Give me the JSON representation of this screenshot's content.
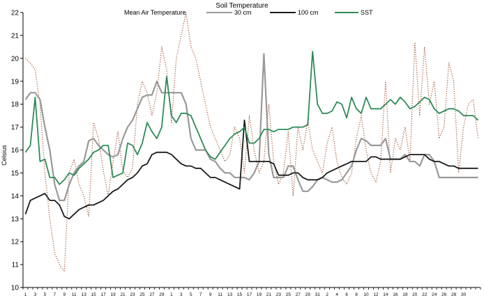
{
  "chart_data": {
    "type": "line",
    "title": "Soil Temperature",
    "ylabel": "Celsius",
    "xlabel": "",
    "ylim": [
      10,
      22
    ],
    "y_ticks": [
      10,
      11,
      12,
      13,
      14,
      15,
      16,
      17,
      18,
      19,
      20,
      21,
      22
    ],
    "grid": false,
    "legend": "top",
    "x_count": 94,
    "x_tick_labels": [
      "1",
      "3",
      "5",
      "7",
      "9",
      "11",
      "13",
      "15",
      "17",
      "19",
      "21",
      "23",
      "25",
      "27",
      "29",
      "1",
      "3",
      "5",
      "7",
      "9",
      "11",
      "13",
      "15",
      "17",
      "19",
      "21",
      "23",
      "25",
      "27",
      "29",
      "31",
      "2",
      "4",
      "6",
      "8",
      "10",
      "12",
      "14",
      "16",
      "18",
      "20",
      "22",
      "24",
      "26",
      "28",
      "30"
    ],
    "series": [
      {
        "name": "Mean Air Temperature",
        "color": "#a0522d",
        "style": "dotted",
        "values": [
          20.0,
          19.8,
          19.5,
          18.0,
          15.0,
          13.0,
          11.5,
          11.0,
          10.7,
          15.0,
          15.6,
          14.5,
          14.0,
          13.1,
          17.2,
          16.5,
          15.1,
          14.0,
          15.5,
          16.8,
          15.1,
          14.8,
          15.2,
          18.0,
          19.0,
          18.5,
          17.5,
          18.5,
          20.5,
          19.5,
          17.2,
          20.0,
          21.0,
          22.0,
          20.5,
          20.0,
          19.0,
          18.0,
          17.0,
          16.5,
          16.0,
          15.5,
          15.8,
          17.0,
          16.5,
          15.0,
          17.5,
          16.0,
          15.0,
          15.5,
          18.0,
          15.5,
          14.5,
          15.0,
          16.8,
          14.0,
          17.0,
          16.0,
          17.3,
          16.0,
          15.5,
          15.0,
          16.3,
          17.0,
          15.5,
          14.8,
          14.5,
          15.0,
          16.5,
          17.5,
          16.0,
          15.0,
          14.6,
          15.5,
          19.0,
          15.0,
          16.5,
          16.0,
          17.0,
          15.5,
          20.7,
          17.5,
          20.5,
          18.0,
          19.0,
          16.5,
          17.0,
          19.8,
          19.0,
          15.0,
          17.0,
          18.0,
          18.2,
          16.5
        ]
      },
      {
        "name": "30 cm",
        "color": "#999999",
        "style": "solid",
        "values": [
          18.2,
          18.5,
          18.5,
          18.2,
          17.0,
          16.0,
          14.5,
          13.8,
          13.8,
          14.5,
          15.0,
          15.3,
          15.5,
          16.4,
          16.5,
          16.2,
          16.0,
          15.8,
          15.7,
          15.8,
          16.5,
          17.0,
          17.3,
          17.8,
          18.3,
          18.4,
          18.4,
          19.0,
          18.5,
          18.5,
          18.5,
          18.5,
          18.5,
          18.0,
          16.5,
          16.0,
          16.0,
          16.0,
          15.6,
          15.5,
          15.2,
          15.0,
          15.0,
          14.8,
          14.8,
          14.8,
          14.7,
          15.0,
          15.5,
          20.2,
          15.8,
          14.8,
          14.8,
          14.8,
          15.3,
          15.3,
          14.7,
          14.2,
          14.2,
          14.4,
          14.7,
          14.8,
          14.7,
          14.6,
          14.6,
          14.7,
          15.0,
          15.3,
          16.0,
          16.5,
          16.4,
          16.2,
          16.2,
          16.2,
          16.5,
          15.6,
          15.6,
          15.6,
          15.8,
          15.5,
          15.5,
          15.3,
          15.8,
          15.8,
          15.5,
          14.8,
          14.8,
          14.8,
          14.8,
          14.8,
          14.8,
          14.8,
          14.8,
          14.8
        ]
      },
      {
        "name": "100 cm",
        "color": "#1a1a1a",
        "style": "solid",
        "values": [
          13.2,
          13.8,
          13.9,
          14.0,
          14.1,
          13.8,
          13.8,
          13.6,
          13.1,
          13.0,
          13.2,
          13.4,
          13.5,
          13.6,
          13.6,
          13.7,
          13.8,
          14.0,
          14.2,
          14.3,
          14.5,
          14.7,
          14.8,
          15.0,
          15.3,
          15.4,
          15.8,
          15.9,
          15.9,
          15.9,
          15.8,
          15.6,
          15.4,
          15.3,
          15.3,
          15.2,
          15.2,
          15.0,
          14.8,
          14.8,
          14.7,
          14.6,
          14.5,
          14.4,
          14.3,
          17.3,
          15.5,
          15.5,
          15.5,
          15.5,
          15.5,
          15.4,
          14.9,
          14.9,
          14.9,
          15.0,
          15.0,
          14.8,
          14.7,
          14.7,
          14.7,
          14.8,
          15.0,
          15.1,
          15.2,
          15.3,
          15.4,
          15.5,
          15.5,
          15.5,
          15.5,
          15.7,
          15.7,
          15.6,
          15.6,
          15.6,
          15.6,
          15.6,
          15.7,
          15.8,
          15.8,
          15.8,
          15.8,
          15.6,
          15.5,
          15.5,
          15.4,
          15.3,
          15.3,
          15.2,
          15.2,
          15.2,
          15.2,
          15.2
        ]
      },
      {
        "name": "SST",
        "color": "#2e8b57",
        "style": "solid",
        "values": [
          15.9,
          16.2,
          18.3,
          15.5,
          15.6,
          14.8,
          14.8,
          14.5,
          14.7,
          15.0,
          14.9,
          15.2,
          15.4,
          15.6,
          15.9,
          16.0,
          16.2,
          16.2,
          14.8,
          14.9,
          15.0,
          16.3,
          16.2,
          15.8,
          16.3,
          17.2,
          16.8,
          16.5,
          17.0,
          19.2,
          17.5,
          17.2,
          17.6,
          17.6,
          17.5,
          17.0,
          16.5,
          16.0,
          15.7,
          15.6,
          15.9,
          16.2,
          16.5,
          16.7,
          16.8,
          17.0,
          16.3,
          16.3,
          16.5,
          16.9,
          16.9,
          16.8,
          16.9,
          16.9,
          16.9,
          17.0,
          17.0,
          17.0,
          17.1,
          20.3,
          18.0,
          17.6,
          17.6,
          17.7,
          18.1,
          18.0,
          17.4,
          18.3,
          17.8,
          17.6,
          18.3,
          17.8,
          17.8,
          17.8,
          18.0,
          18.2,
          18.0,
          18.3,
          18.1,
          17.8,
          17.9,
          18.1,
          18.3,
          18.2,
          17.8,
          17.6,
          17.7,
          17.8,
          17.8,
          17.7,
          17.5,
          17.5,
          17.5,
          17.3
        ]
      }
    ]
  }
}
